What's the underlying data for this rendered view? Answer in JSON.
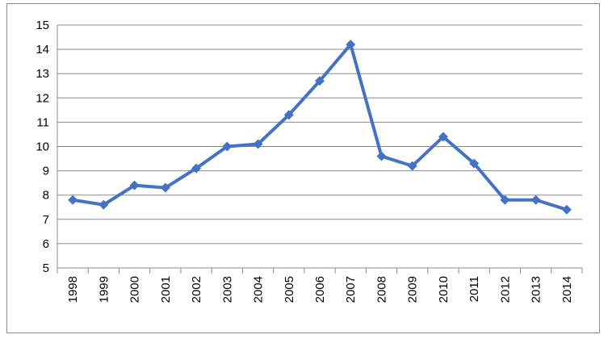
{
  "chart_data": {
    "type": "line",
    "title": "",
    "xlabel": "",
    "ylabel": "",
    "categories": [
      "1998",
      "1999",
      "2000",
      "2001",
      "2002",
      "2003",
      "2004",
      "2005",
      "2006",
      "2007",
      "2008",
      "2009",
      "2010",
      "2011",
      "2012",
      "2013",
      "2014"
    ],
    "series": [
      {
        "values": [
          7.8,
          7.6,
          8.4,
          8.3,
          9.1,
          10.0,
          10.1,
          11.3,
          12.7,
          14.2,
          9.6,
          9.2,
          10.4,
          9.3,
          7.8,
          7.8,
          7.4
        ],
        "color": "#4472c4",
        "marker": "diamond"
      }
    ],
    "ylim": [
      5,
      15
    ],
    "yticks": [
      "5",
      "6",
      "7",
      "8",
      "9",
      "10",
      "11",
      "12",
      "13",
      "14",
      "15"
    ],
    "grid": true,
    "legend": "none",
    "x_tick_rotation": "vertical"
  }
}
